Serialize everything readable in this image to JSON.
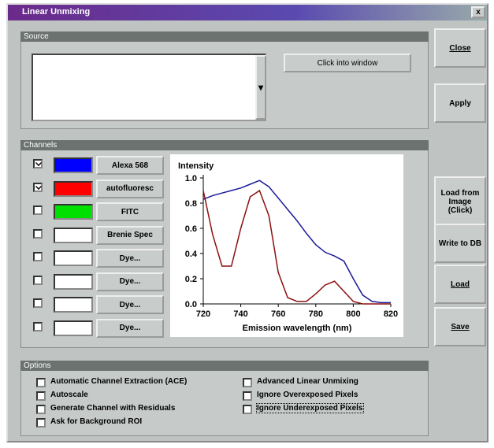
{
  "window": {
    "title": "Linear Unmixing",
    "close_glyph": "x"
  },
  "source": {
    "header": "Source",
    "button": "Click into window",
    "dropdown_glyph": "▾"
  },
  "side_buttons": [
    "Close",
    "Apply",
    "Load from Image (Click)",
    "Write to DB",
    "Load",
    "Save"
  ],
  "channels": {
    "header": "Channels",
    "rows": [
      {
        "checked": true,
        "color": "#0000ff",
        "label": "Alexa 568"
      },
      {
        "checked": true,
        "color": "#ff0000",
        "label": "autofluoresc"
      },
      {
        "checked": false,
        "color": "#00e000",
        "label": "FITC"
      },
      {
        "checked": false,
        "color": "#ffffff",
        "label": "Brenie Spec"
      },
      {
        "checked": false,
        "color": "#ffffff",
        "label": "Dye..."
      },
      {
        "checked": false,
        "color": "#ffffff",
        "label": "Dye..."
      },
      {
        "checked": false,
        "color": "#ffffff",
        "label": "Dye..."
      },
      {
        "checked": false,
        "color": "#ffffff",
        "label": "Dye..."
      }
    ]
  },
  "chart_data": {
    "type": "line",
    "y_label": "Intensity",
    "x_label": "Emission wavelength (nm)",
    "x": [
      720,
      725,
      730,
      735,
      740,
      745,
      750,
      755,
      760,
      765,
      770,
      775,
      780,
      785,
      790,
      795,
      800,
      805,
      810,
      815,
      820
    ],
    "series": [
      {
        "color": "#1a1a9a",
        "values": [
          0.83,
          0.86,
          0.88,
          0.9,
          0.92,
          0.95,
          0.98,
          0.93,
          0.84,
          0.75,
          0.66,
          0.56,
          0.47,
          0.41,
          0.38,
          0.34,
          0.2,
          0.07,
          0.02,
          0.01,
          0.01
        ]
      },
      {
        "color": "#8b1010",
        "values": [
          0.9,
          0.55,
          0.3,
          0.3,
          0.6,
          0.85,
          0.9,
          0.7,
          0.25,
          0.05,
          0.02,
          0.02,
          0.08,
          0.15,
          0.18,
          0.1,
          0.02,
          0,
          0,
          0,
          0
        ]
      }
    ],
    "xlim": [
      720,
      820
    ],
    "xticks": [
      720,
      740,
      760,
      780,
      800,
      820
    ],
    "ylim": [
      0,
      1
    ],
    "yticks": [
      {
        "value": 0,
        "label": "0.0"
      },
      {
        "value": 0.2,
        "label": "0.2"
      },
      {
        "value": 0.4,
        "label": "0.4"
      },
      {
        "value": 0.6,
        "label": "0.6"
      },
      {
        "value": 0.8,
        "label": "0.8"
      },
      {
        "value": 1,
        "label": "1.0"
      }
    ]
  },
  "options": {
    "header": "Options",
    "items": [
      {
        "label": "Automatic Channel Extraction (ACE)",
        "checked": false
      },
      {
        "label": "Autoscale",
        "checked": false
      },
      {
        "label": "Generate Channel with Residuals",
        "checked": false
      },
      {
        "label": "Ask for Background ROI",
        "checked": false
      },
      {
        "label": "Advanced Linear Unmixing",
        "checked": false
      },
      {
        "label": "Ignore Overexposed Pixels",
        "checked": false
      },
      {
        "label": "Ignore Underexposed Pixels",
        "checked": false
      }
    ]
  }
}
